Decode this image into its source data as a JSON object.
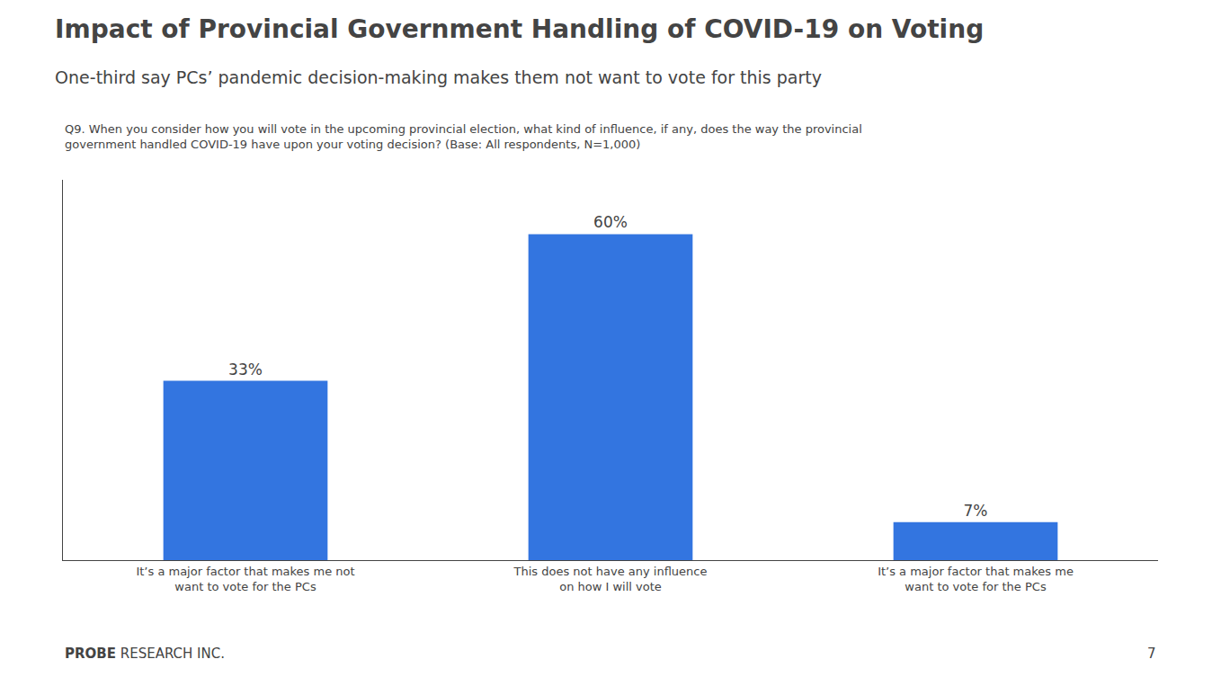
{
  "chart_data": {
    "type": "bar",
    "title": "Impact of Provincial Government Handling of COVID-19 on Voting",
    "subtitle": "One-third say PCs’ pandemic decision-making makes them not want to vote for this party",
    "annotations": [
      "Q9. When you consider how you will vote in the upcoming provincial election, what kind of influence, if any, does the way the provincial\ngovernment handled COVID-19 have upon your voting decision? (Base: All respondents, N=1,000)",
      "PROBE",
      " RESEARCH INC.",
      "7"
    ],
    "categories": [
      "It’s a major factor that makes me not\nwant to vote for the PCs",
      "This does not have any influence\non how I will vote",
      "It’s a major factor that makes me\nwant to vote for the PCs"
    ],
    "values": [
      33,
      60,
      7
    ],
    "value_labels": [
      "33%",
      "60%",
      "7%"
    ],
    "data_labels": true,
    "color": "#3375E0",
    "ylim": [
      0,
      70
    ],
    "yticks": [],
    "grid": false,
    "tick_labels": "x"
  }
}
